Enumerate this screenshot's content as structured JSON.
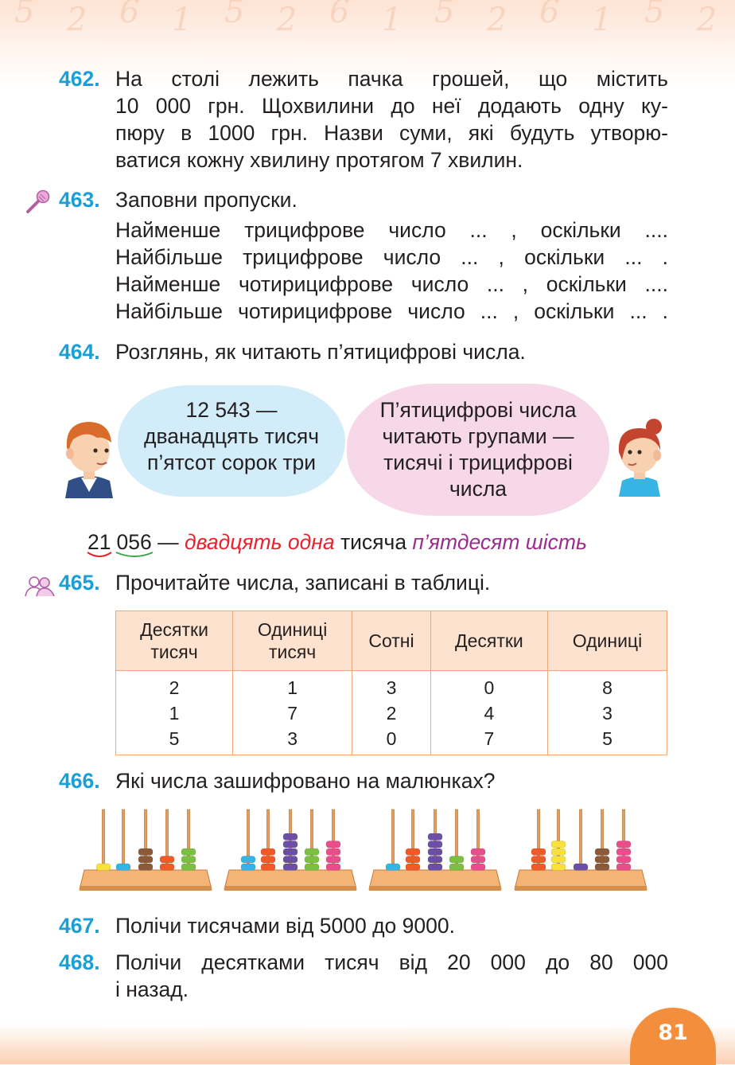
{
  "ex462": {
    "number": "462.",
    "lines": [
      "На столі лежить пачка грошей, що містить",
      "10 000 грн. Щохвилини до неї додають одну ку-",
      "пюру в 1000 грн. Назви суми, які будуть утворю-",
      "ватися кожну хвилину протягом 7 хвилин."
    ]
  },
  "ex463": {
    "number": "463.",
    "title": "Заповни пропуски.",
    "lines": [
      "Найменше трицифрове число ... , оскільки ....",
      "Найбільше трицифрове число ... , оскільки ... .",
      "Найменше чотирицифрове число ... , оскільки ....",
      "Найбільше чотирицифрове число ... , оскільки ... ."
    ]
  },
  "ex464": {
    "number": "464.",
    "title": "Розглянь, як читають п’ятицифрові числа.",
    "bubble_boy": [
      "12 543 —",
      "дванадцять тисяч",
      "п’ятсот сорок три"
    ],
    "bubble_girl": [
      "П’ятицифрові числа",
      "читають групами —",
      "тисячі і трицифрові",
      "числа"
    ],
    "example": {
      "group1": "21",
      "group2": "056",
      "dash": " — ",
      "red_part": "двадцять одна",
      "middle": " тисяча ",
      "purple_part": "п’ятдесят шість"
    }
  },
  "ex465": {
    "number": "465.",
    "title": "Прочитайте числа, записані в таблиці.",
    "headers": [
      [
        "Десятки",
        "тисяч"
      ],
      [
        "Одиниці",
        "тисяч"
      ],
      [
        "Сотні"
      ],
      [
        "Десятки"
      ],
      [
        "Одиниці"
      ]
    ],
    "columns": [
      [
        "2",
        "1",
        "5"
      ],
      [
        "1",
        "7",
        "3"
      ],
      [
        "3",
        "2",
        "0"
      ],
      [
        "0",
        "4",
        "7"
      ],
      [
        "8",
        "3",
        "5"
      ]
    ]
  },
  "ex466": {
    "number": "466.",
    "title": "Які числа зашифровано на малюнках?",
    "abaci": [
      {
        "beads": [
          1,
          1,
          3,
          2,
          3
        ],
        "colors": [
          "#f7e23b",
          "#36b4e6",
          "#8a5a3a",
          "#f05a28",
          "#7bc043"
        ]
      },
      {
        "beads": [
          2,
          3,
          5,
          3,
          4
        ],
        "colors": [
          "#36b4e6",
          "#f05a28",
          "#6b4fa6",
          "#7bc043",
          "#ea4d8c"
        ]
      },
      {
        "beads": [
          1,
          3,
          5,
          2,
          3
        ],
        "colors": [
          "#36b4e6",
          "#f05a28",
          "#6b4fa6",
          "#7bc043",
          "#ea4d8c"
        ]
      },
      {
        "beads": [
          3,
          4,
          1,
          3,
          4
        ],
        "colors": [
          "#f05a28",
          "#f7e23b",
          "#6b4fa6",
          "#8a5a3a",
          "#ea4d8c"
        ]
      }
    ]
  },
  "ex467": {
    "number": "467.",
    "text": "Полічи тисячами від 5000 до 9000."
  },
  "ex468": {
    "number": "468.",
    "lines": [
      "Полічи десятками тисяч від 20 000 до 80 000",
      "і назад."
    ]
  },
  "page_number": "81",
  "decor_digits": [
    "5",
    "2",
    "6",
    "1",
    "5",
    "2",
    "6",
    "1",
    "5",
    "2",
    "6",
    "1",
    "5",
    "2"
  ]
}
